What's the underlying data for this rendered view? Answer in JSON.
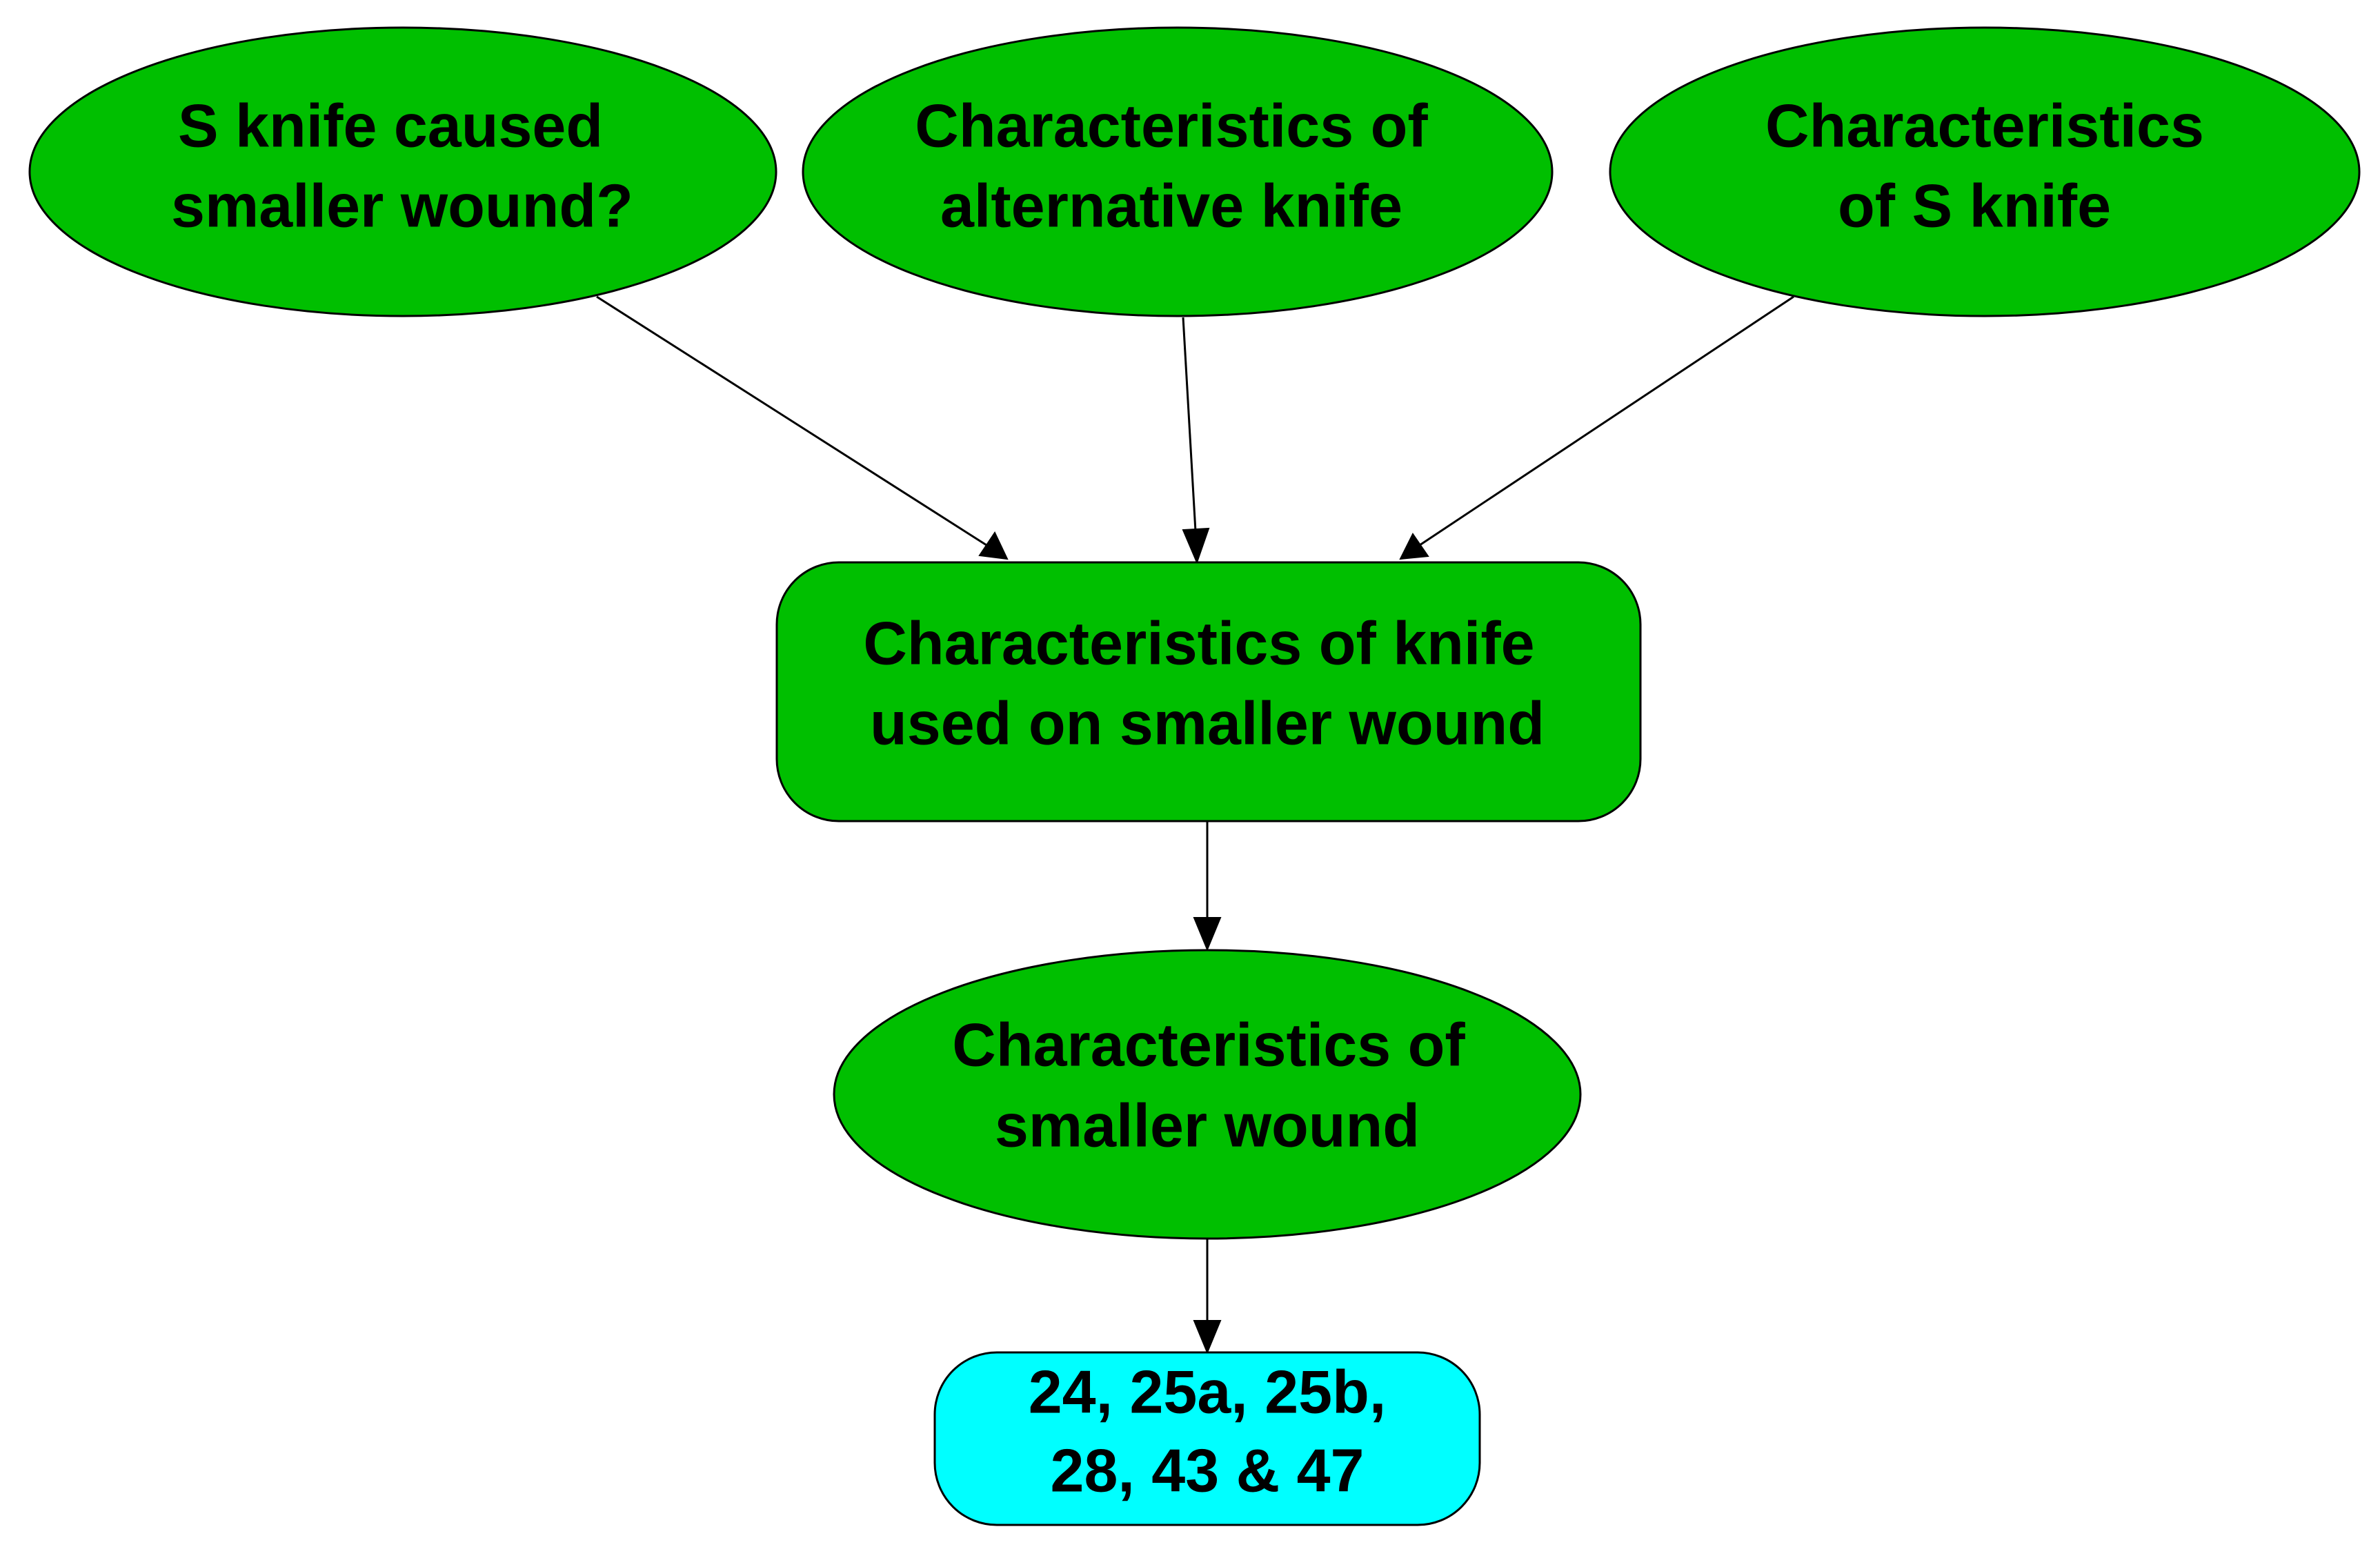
{
  "colors": {
    "green_node": "#00bf00",
    "cyan_node": "#00ffff",
    "stroke": "#000000"
  },
  "nodes": {
    "s_knife_caused": {
      "line1": "S knife caused",
      "line2": "smaller wound?"
    },
    "alt_knife": {
      "line1": "Characteristics of",
      "line2": "alternative knife"
    },
    "s_knife": {
      "line1": "Characteristics",
      "line2": "of S knife"
    },
    "knife_used": {
      "line1": "Characteristics of knife",
      "line2": "used on smaller wound"
    },
    "smaller_wound": {
      "line1": "Characteristics of",
      "line2": "smaller wound"
    },
    "evidence": {
      "line1": "24, 25a, 25b,",
      "line2": "28, 43 & 47"
    }
  },
  "edges": [
    {
      "from": "s_knife_caused",
      "to": "knife_used"
    },
    {
      "from": "alt_knife",
      "to": "knife_used"
    },
    {
      "from": "s_knife",
      "to": "knife_used"
    },
    {
      "from": "knife_used",
      "to": "smaller_wound"
    },
    {
      "from": "smaller_wound",
      "to": "evidence"
    }
  ]
}
